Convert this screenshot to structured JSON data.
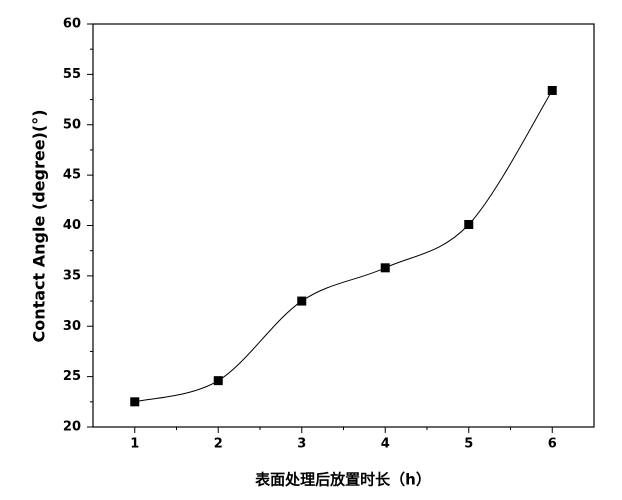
{
  "chart_data": {
    "type": "line",
    "x_label": "表面处理后放置时长（h）",
    "y_label": "Contact Angle (degree)(°)",
    "x": [
      1,
      2,
      3,
      4,
      5,
      6
    ],
    "series": [
      {
        "color": "#000000",
        "values": [
          22.5,
          24.6,
          32.5,
          35.8,
          40.1,
          53.4
        ]
      }
    ],
    "xlim": [
      0.5,
      6.5
    ],
    "xticks": [
      1,
      2,
      3,
      4,
      5,
      6
    ],
    "ylim": [
      20,
      60
    ],
    "yticks": [
      20,
      25,
      30,
      35,
      40,
      45,
      50,
      55,
      60
    ],
    "grid": false
  }
}
